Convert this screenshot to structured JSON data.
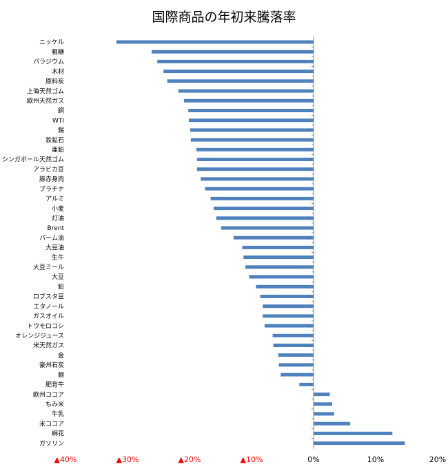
{
  "chart_data": {
    "type": "bar",
    "orientation": "horizontal",
    "title": "国際商品の年初来騰落率",
    "categories": [
      "ニッケル",
      "粗糖",
      "パラジウム",
      "木材",
      "原料炭",
      "上海天然ゴム",
      "欧州天然ガス",
      "銅",
      "WTI",
      "錫",
      "鉄鉱石",
      "亜鉛",
      "シンガポール天然ゴム",
      "アラビカ豆",
      "豚赤身肉",
      "プラチナ",
      "アルミ",
      "小麦",
      "灯油",
      "Brent",
      "パーム油",
      "大豆油",
      "生牛",
      "大豆ミール",
      "大豆",
      "鉛",
      "ロブスタ豆",
      "エタノール",
      "ガスオイル",
      "トウモロコシ",
      "オレンジジュース",
      "米天然ガス",
      "金",
      "豪州石炭",
      "銀",
      "肥育牛",
      "欧州ココア",
      "もみ米",
      "牛乳",
      "米ココア",
      "綿花",
      "ガソリン"
    ],
    "values": [
      -31.8,
      -26.1,
      -25.2,
      -24.2,
      -23.6,
      -21.8,
      -20.9,
      -20.2,
      -20.1,
      -19.9,
      -19.8,
      -18.9,
      -18.8,
      -18.8,
      -18.2,
      -17.5,
      -16.6,
      -16.1,
      -15.7,
      -14.9,
      -12.9,
      -11.5,
      -11.3,
      -11.0,
      -10.4,
      -9.3,
      -8.6,
      -8.2,
      -8.2,
      -7.9,
      -6.6,
      -6.5,
      -5.7,
      -5.6,
      -5.3,
      -2.3,
      2.6,
      3.0,
      3.3,
      5.9,
      12.7,
      14.7
    ],
    "xlim": [
      -40,
      20
    ],
    "x_ticks": [
      -40,
      -30,
      -20,
      -10,
      0,
      10,
      20
    ],
    "x_tick_labels": [
      "▲40%",
      "▲30%",
      "▲20%",
      "▲10%",
      "0%",
      "10%",
      "20%"
    ],
    "grid": false,
    "colors": {
      "bar": "#4f81bd",
      "negative_tick": "#ff0000",
      "positive_tick": "#000000",
      "axis": "#888888"
    }
  }
}
